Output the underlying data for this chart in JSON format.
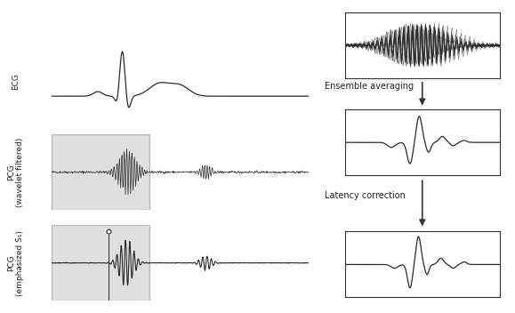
{
  "bg_color": "#ffffff",
  "signal_color": "#2a2a2a",
  "grey_box_facecolor": "#c8c8c8",
  "grey_box_edgecolor": "#888888",
  "ecg_label": "ECG",
  "pcg_wavelet_label": "PCG\n(wavelet filtered)",
  "pcg_emphasized_label": "PCG\n(emphasized S₁)",
  "label_fontsize": 6.5,
  "ensemble_label": "Ensemble averaging",
  "latency_label": "Latency correction",
  "arrow_color": "#333333",
  "panel_border_color": "#333333",
  "seed": 42
}
